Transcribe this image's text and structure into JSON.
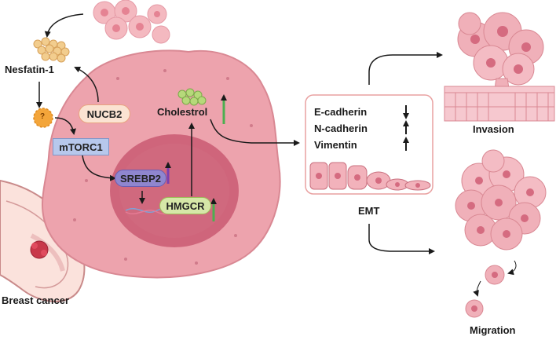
{
  "labels": {
    "nesfatin": "Nesfatin-1",
    "nucb2": "NUCB2",
    "question": "?",
    "mtorc1": "mTORC1",
    "srebp2": "SREBP2",
    "hmgcr": "HMGCR",
    "cholesterol": "Cholestrol",
    "breast_cancer": "Breast cancer",
    "emt": "EMT",
    "invasion": "Invasion",
    "migration": "Migration"
  },
  "emt_markers": [
    {
      "name": "E-cadherin",
      "direction": "down"
    },
    {
      "name": "N-cadherin",
      "direction": "up"
    },
    {
      "name": "Vimentin",
      "direction": "up"
    }
  ],
  "colors": {
    "cell_body": "#eda3ad",
    "cell_border": "#d98893",
    "nucleus": "#c95b72",
    "nucb2_fill": "#fbe3d2",
    "nucb2_border": "#e8a37f",
    "mtorc1_fill": "#b7c8ec",
    "srebp2_fill": "#8f86cf",
    "hmgcr_fill": "#d6e7a8",
    "cholesterol_dots": "#b6d97a",
    "up_green": "#4caf50",
    "up_purple": "#7a3fb0",
    "question_badge": "#f3a53a",
    "emt_border": "#e9a1a1"
  }
}
